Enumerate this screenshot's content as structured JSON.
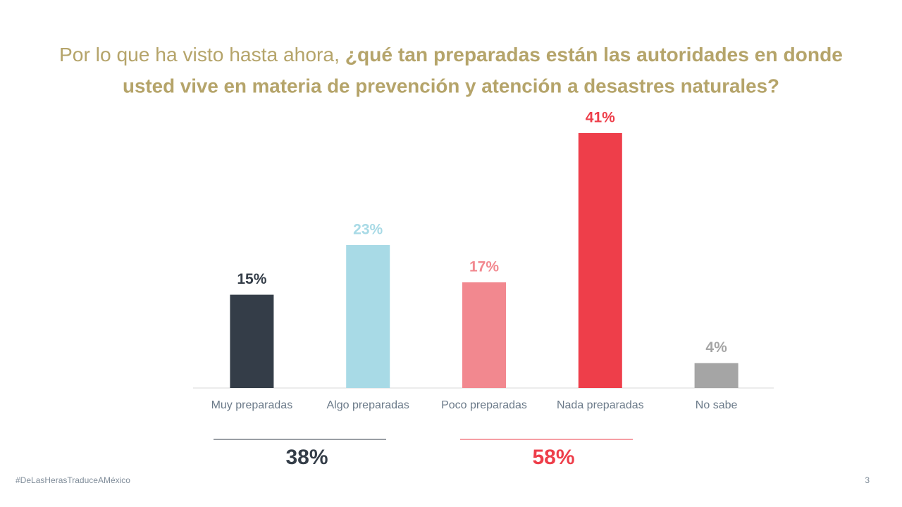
{
  "chart_data": {
    "type": "bar",
    "title": {
      "lead": "Por lo que ha visto hasta ahora,",
      "question": [
        "¿qué tan preparadas están las autoridades en donde",
        "usted vive en materia de prevención y atención a desastres naturales?"
      ]
    },
    "categories": [
      "Muy preparadas",
      "Algo preparadas",
      "Poco preparadas",
      "Nada preparadas",
      "No sabe"
    ],
    "values": [
      15,
      23,
      17,
      41,
      4
    ],
    "value_labels": [
      "15%",
      "23%",
      "17%",
      "41%",
      "4%"
    ],
    "colors": [
      "#343d48",
      "#a8dae6",
      "#f2888f",
      "#ee3e4a",
      "#a5a5a5"
    ],
    "groups": [
      {
        "value": 38,
        "label": "38%",
        "color": "#343d48"
      },
      {
        "value": 58,
        "label": "58%",
        "color": "#ee3e4a"
      }
    ]
  },
  "footer": {
    "hashtag": "#DeLasHerasTraduceAMéxico",
    "page": "3"
  }
}
